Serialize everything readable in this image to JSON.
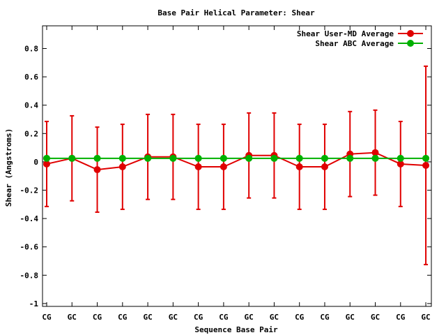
{
  "chart_data": {
    "type": "line",
    "title": "Base Pair Helical Parameter: Shear",
    "xlabel": "Sequence Base Pair",
    "ylabel": "Shear (Angstroms)",
    "ylim": [
      -1.02,
      0.96
    ],
    "yticks": [
      0.8,
      0.6,
      0.4,
      0.2,
      0,
      -0.2,
      -0.4,
      -0.6,
      -0.8,
      -1
    ],
    "ytick_labels": [
      "0.8",
      "0.6",
      "0.4",
      "0.2",
      "0",
      "-0.2",
      "-0.4",
      "-0.6",
      "-0.8",
      "-1"
    ],
    "categories": [
      "CG",
      "GC",
      "CG",
      "CG",
      "GC",
      "GC",
      "CG",
      "CG",
      "GC",
      "GC",
      "CG",
      "CG",
      "GC",
      "GC",
      "CG",
      "GC"
    ],
    "grid": false,
    "legend_position": "top-right",
    "series": [
      {
        "name": "Shear User-MD Average",
        "color": "#e00000",
        "values": [
          -0.015,
          0.025,
          -0.055,
          -0.035,
          0.035,
          0.035,
          -0.035,
          -0.035,
          0.045,
          0.045,
          -0.035,
          -0.035,
          0.055,
          0.065,
          -0.015,
          -0.025
        ],
        "err_low": [
          -0.315,
          -0.275,
          -0.355,
          -0.335,
          -0.265,
          -0.265,
          -0.335,
          -0.335,
          -0.255,
          -0.255,
          -0.335,
          -0.335,
          -0.245,
          -0.235,
          -0.315,
          -0.725
        ],
        "err_high": [
          0.285,
          0.325,
          0.245,
          0.265,
          0.335,
          0.335,
          0.265,
          0.265,
          0.345,
          0.345,
          0.265,
          0.265,
          0.355,
          0.365,
          0.285,
          0.675
        ]
      },
      {
        "name": "Shear ABC Average",
        "color": "#00b000",
        "values": [
          0.025,
          0.025,
          0.025,
          0.025,
          0.025,
          0.025,
          0.025,
          0.025,
          0.025,
          0.025,
          0.025,
          0.025,
          0.025,
          0.025,
          0.025,
          0.025
        ]
      }
    ]
  }
}
